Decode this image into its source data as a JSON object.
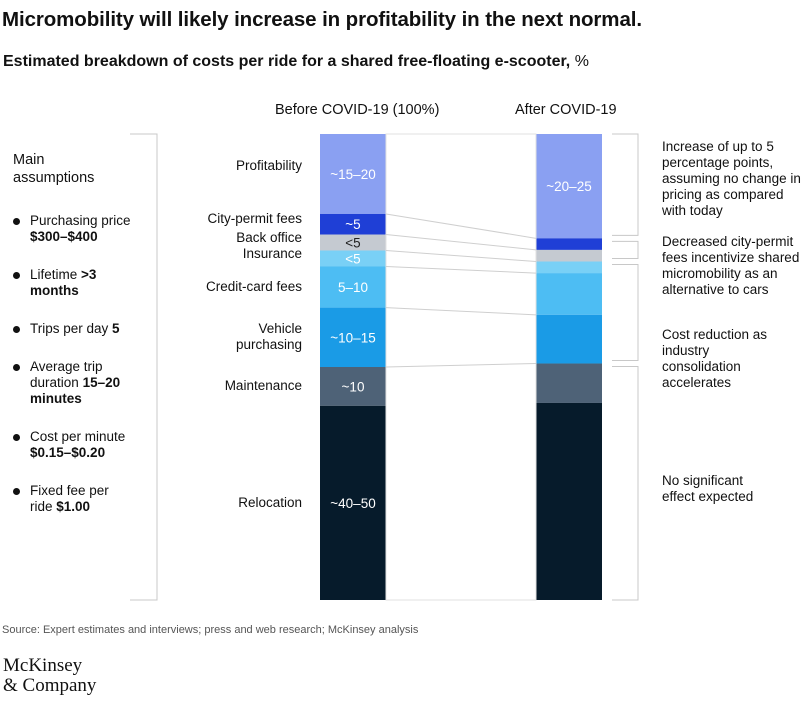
{
  "title": "Micromobility will likely increase in profitability in the next normal.",
  "subtitle": "Estimated breakdown of costs per ride for a shared free-floating e-scooter,",
  "subtitle_unit": "%",
  "assumptions": {
    "title": "Main assumptions",
    "items": [
      {
        "label": "Purchasing price",
        "value": "$300–$400"
      },
      {
        "label": "Lifetime",
        "value": ">3 months"
      },
      {
        "label": "Trips per day",
        "value": "5"
      },
      {
        "label": "Average trip duration",
        "value": "15–20 minutes"
      },
      {
        "label": "Cost per minute",
        "value": "$0.15–$0.20"
      },
      {
        "label": "Fixed fee per ride",
        "value": "$1.00"
      }
    ]
  },
  "chart_data": {
    "type": "bar",
    "stacked": true,
    "unit": "%",
    "categories": [
      "Before COVID-19 (100%)",
      "After COVID-19"
    ],
    "series": [
      {
        "name": "Profitability",
        "color": "#8aa0f2",
        "values": [
          17.5,
          22.5
        ],
        "labels": [
          "~15–20",
          "~20–25"
        ]
      },
      {
        "name": "City-permit fees",
        "color": "#1f3fd6",
        "values": [
          4.5,
          2.5
        ],
        "labels": [
          "~5",
          ""
        ]
      },
      {
        "name": "Back office",
        "color": "#c5cad1",
        "values": [
          3.5,
          2.5
        ],
        "labels": [
          "<5",
          ""
        ]
      },
      {
        "name": "Insurance",
        "color": "#79d0f6",
        "values": [
          3.5,
          2.5
        ],
        "labels": [
          "<5",
          ""
        ]
      },
      {
        "name": "Credit-card fees",
        "color": "#4dbdf3",
        "values": [
          9,
          9
        ],
        "labels": [
          "5–10",
          ""
        ]
      },
      {
        "name": "Vehicle purchasing",
        "color": "#1a9be6",
        "values": [
          13,
          10.5
        ],
        "labels": [
          "~10–15",
          ""
        ]
      },
      {
        "name": "Maintenance",
        "color": "#4e6277",
        "values": [
          8.5,
          8.5
        ],
        "labels": [
          "~10",
          ""
        ]
      },
      {
        "name": "Relocation",
        "color": "#061b2b",
        "values": [
          42.5,
          42.5
        ],
        "labels": [
          "~40–50",
          ""
        ]
      }
    ],
    "annotations": [
      {
        "text": "Increase of up to 5 percentage points, assuming no change in pricing as compared with today",
        "spans": [
          "Profitability"
        ]
      },
      {
        "text": "Decreased city-permit fees incentivize shared micromobility as an alternative to cars",
        "spans": [
          "City-permit fees",
          "Back office"
        ]
      },
      {
        "text": "Cost reduction as industry consolidation accelerates",
        "spans": [
          "Insurance",
          "Credit-card fees",
          "Vehicle purchasing"
        ]
      },
      {
        "text": "No significant effect expected",
        "spans": [
          "Maintenance",
          "Relocation"
        ]
      }
    ]
  },
  "source": "Source: Expert estimates and interviews; press and web research; McKinsey analysis",
  "logo": "McKinsey & Company"
}
